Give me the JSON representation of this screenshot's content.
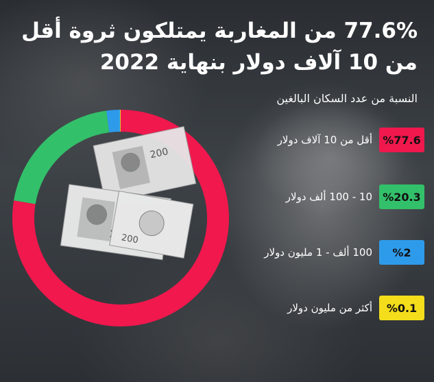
{
  "title": "77.6% من المغاربة يمتلكون ثروة أقل من 10 آلاف دولار بنهاية 2022",
  "subtitle": "النسبة من عدد السكان البالغين",
  "chart_data": {
    "type": "pie",
    "title": "77.6% من المغاربة يمتلكون ثروة أقل من 10 آلاف دولار بنهاية 2022",
    "subtitle": "النسبة من عدد السكان البالغين",
    "categories": [
      "أقل من 10 آلاف دولار",
      "10 - 100 ألف دولار",
      "100 ألف - 1 مليون دولار",
      "أكثر من مليون دولار"
    ],
    "values": [
      77.6,
      20.3,
      2,
      0.1
    ],
    "labels": [
      "%77.6",
      "%20.3",
      "%2",
      "%0.1"
    ],
    "colors": [
      "#f0184d",
      "#33c06a",
      "#2e9bea",
      "#f4dd1b"
    ],
    "legend_position": "right"
  },
  "icons": [
    "banknote-image"
  ]
}
